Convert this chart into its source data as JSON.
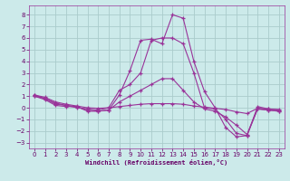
{
  "xlabel": "Windchill (Refroidissement éolien,°C)",
  "bg_color": "#cceaea",
  "grid_color": "#aacccc",
  "line_color": "#993399",
  "xlim": [
    -0.5,
    23.5
  ],
  "ylim": [
    -3.5,
    8.8
  ],
  "yticks": [
    -3,
    -2,
    -1,
    0,
    1,
    2,
    3,
    4,
    5,
    6,
    7,
    8
  ],
  "xticks": [
    0,
    1,
    2,
    3,
    4,
    5,
    6,
    7,
    8,
    9,
    10,
    11,
    12,
    13,
    14,
    15,
    16,
    17,
    18,
    19,
    20,
    21,
    22,
    23
  ],
  "lines": [
    {
      "x": [
        0,
        1,
        2,
        3,
        4,
        5,
        6,
        7,
        8,
        9,
        10,
        11,
        12,
        13,
        14,
        15,
        16,
        17,
        18,
        19,
        20,
        21,
        22,
        23
      ],
      "y": [
        1.0,
        0.7,
        0.2,
        0.1,
        0.1,
        -0.3,
        -0.3,
        -0.2,
        1.1,
        3.2,
        5.8,
        5.9,
        5.5,
        8.0,
        7.7,
        4.0,
        1.4,
        0.0,
        -1.7,
        -2.5,
        -2.4,
        0.1,
        -0.1,
        -0.2
      ]
    },
    {
      "x": [
        0,
        1,
        2,
        3,
        4,
        5,
        6,
        7,
        8,
        9,
        10,
        11,
        12,
        13,
        14,
        15,
        16,
        17,
        18,
        19,
        20,
        21,
        22,
        23
      ],
      "y": [
        1.0,
        0.8,
        0.3,
        0.2,
        0.0,
        -0.1,
        -0.2,
        0.0,
        1.5,
        2.0,
        3.0,
        5.8,
        6.0,
        6.0,
        5.5,
        3.0,
        0.0,
        -0.1,
        -1.0,
        -2.2,
        -2.4,
        -0.1,
        -0.2,
        -0.3
      ]
    },
    {
      "x": [
        0,
        1,
        2,
        3,
        4,
        5,
        6,
        7,
        8,
        9,
        10,
        11,
        12,
        13,
        14,
        15,
        16,
        17,
        18,
        19,
        20,
        21,
        22,
        23
      ],
      "y": [
        1.1,
        0.8,
        0.4,
        0.2,
        0.1,
        -0.2,
        -0.3,
        -0.2,
        0.5,
        1.0,
        1.5,
        2.0,
        2.5,
        2.5,
        1.5,
        0.5,
        -0.1,
        -0.3,
        -0.8,
        -1.5,
        -2.3,
        -0.1,
        -0.2,
        -0.3
      ]
    },
    {
      "x": [
        0,
        1,
        2,
        3,
        4,
        5,
        6,
        7,
        8,
        9,
        10,
        11,
        12,
        13,
        14,
        15,
        16,
        17,
        18,
        19,
        20,
        21,
        22,
        23
      ],
      "y": [
        1.1,
        0.9,
        0.5,
        0.3,
        0.15,
        0.0,
        -0.05,
        0.0,
        0.1,
        0.2,
        0.3,
        0.35,
        0.35,
        0.35,
        0.3,
        0.15,
        0.05,
        -0.05,
        -0.15,
        -0.35,
        -0.5,
        -0.05,
        -0.1,
        -0.15
      ]
    }
  ]
}
